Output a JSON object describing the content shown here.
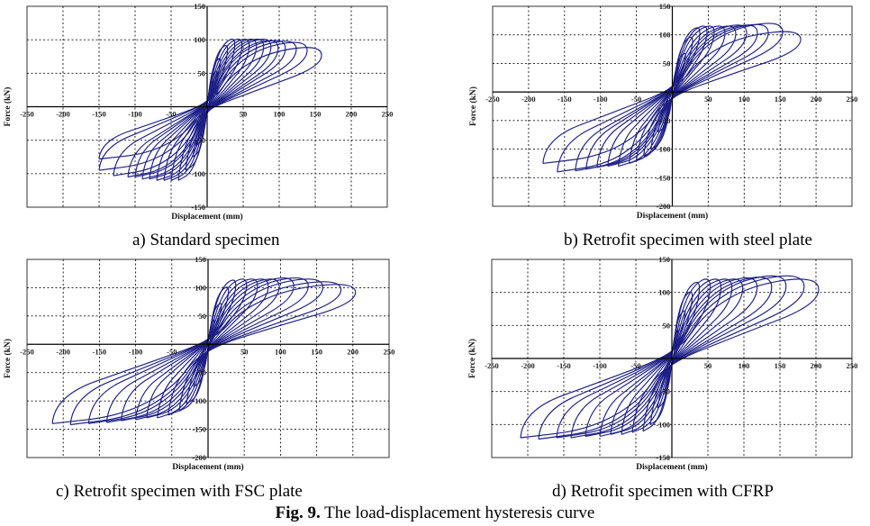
{
  "figure_caption": {
    "label": "Fig. 9.",
    "text": " The load-displacement hysteresis curve"
  },
  "chart_data": [
    {
      "type": "line",
      "caption": "a) Standard specimen",
      "xlabel": "Displacement (mm)",
      "ylabel": "Force (kN)",
      "xlim": [
        -250,
        250
      ],
      "ylim": [
        -150,
        150
      ],
      "xticks": [
        -250,
        -200,
        -150,
        -100,
        -50,
        0,
        50,
        100,
        150,
        200,
        250
      ],
      "yticks": [
        -150,
        -100,
        -50,
        0,
        50,
        100,
        150
      ],
      "grid": true,
      "series_color": "#1d1f86",
      "loops": [
        {
          "dpos": 10,
          "fpos": 40,
          "dneg": -10,
          "fneg": -45
        },
        {
          "dpos": 15,
          "fpos": 55,
          "dneg": -15,
          "fneg": -58
        },
        {
          "dpos": 20,
          "fpos": 75,
          "dneg": -20,
          "fneg": -75
        },
        {
          "dpos": 30,
          "fpos": 95,
          "dneg": -30,
          "fneg": -95
        },
        {
          "dpos": 40,
          "fpos": 105,
          "dneg": -40,
          "fneg": -110
        },
        {
          "dpos": 50,
          "fpos": 105,
          "dneg": -50,
          "fneg": -110
        },
        {
          "dpos": 60,
          "fpos": 105,
          "dneg": -60,
          "fneg": -110
        },
        {
          "dpos": 70,
          "fpos": 105,
          "dneg": -70,
          "fneg": -110
        },
        {
          "dpos": 80,
          "fpos": 105,
          "dneg": -80,
          "fneg": -108
        },
        {
          "dpos": 90,
          "fpos": 105,
          "dneg": -90,
          "fneg": -108
        },
        {
          "dpos": 100,
          "fpos": 103,
          "dneg": -100,
          "fneg": -105
        },
        {
          "dpos": 110,
          "fpos": 103,
          "dneg": -110,
          "fneg": -105
        },
        {
          "dpos": 125,
          "fpos": 102,
          "dneg": -130,
          "fneg": -103
        },
        {
          "dpos": 140,
          "fpos": 100,
          "dneg": -150,
          "fneg": -95
        },
        {
          "dpos": 160,
          "fpos": 92,
          "dneg": -150,
          "fneg": -78
        }
      ]
    },
    {
      "type": "line",
      "caption": "b) Retrofit specimen with steel plate",
      "xlabel": "Displacement (mm)",
      "ylabel": "Force (kN)",
      "xlim": [
        -250,
        250
      ],
      "ylim": [
        -200,
        150
      ],
      "xticks": [
        -250,
        -200,
        -150,
        -100,
        -50,
        0,
        50,
        100,
        150,
        200,
        250
      ],
      "yticks": [
        -200,
        -150,
        -100,
        -50,
        0,
        50,
        100,
        150
      ],
      "grid": true,
      "series_color": "#1d1f86",
      "loops": [
        {
          "dpos": 10,
          "fpos": 45,
          "dneg": -10,
          "fneg": -50
        },
        {
          "dpos": 20,
          "fpos": 70,
          "dneg": -20,
          "fneg": -70
        },
        {
          "dpos": 30,
          "fpos": 100,
          "dneg": -30,
          "fneg": -100
        },
        {
          "dpos": 40,
          "fpos": 117,
          "dneg": -40,
          "fneg": -112
        },
        {
          "dpos": 50,
          "fpos": 120,
          "dneg": -50,
          "fneg": -120
        },
        {
          "dpos": 60,
          "fpos": 120,
          "dneg": -60,
          "fneg": -125
        },
        {
          "dpos": 75,
          "fpos": 120,
          "dneg": -75,
          "fneg": -130
        },
        {
          "dpos": 90,
          "fpos": 120,
          "dneg": -90,
          "fneg": -130
        },
        {
          "dpos": 105,
          "fpos": 122,
          "dneg": -105,
          "fneg": -132
        },
        {
          "dpos": 120,
          "fpos": 122,
          "dneg": -120,
          "fneg": -135
        },
        {
          "dpos": 135,
          "fpos": 123,
          "dneg": -135,
          "fneg": -138
        },
        {
          "dpos": 155,
          "fpos": 125,
          "dneg": -160,
          "fneg": -140
        },
        {
          "dpos": 180,
          "fpos": 110,
          "dneg": -180,
          "fneg": -125
        }
      ]
    },
    {
      "type": "line",
      "caption": "c) Retrofit specimen with FSC plate",
      "xlabel": "Displacement (mm)",
      "ylabel": "Force (kN)",
      "xlim": [
        -250,
        250
      ],
      "ylim": [
        -200,
        150
      ],
      "xticks": [
        -250,
        -200,
        -150,
        -100,
        -50,
        0,
        50,
        100,
        150,
        200,
        250
      ],
      "yticks": [
        -200,
        -150,
        -100,
        -50,
        0,
        50,
        100,
        150
      ],
      "grid": true,
      "series_color": "#1d1f86",
      "loops": [
        {
          "dpos": 10,
          "fpos": 45,
          "dneg": -10,
          "fneg": -50
        },
        {
          "dpos": 20,
          "fpos": 75,
          "dneg": -20,
          "fneg": -75
        },
        {
          "dpos": 30,
          "fpos": 105,
          "dneg": -30,
          "fneg": -105
        },
        {
          "dpos": 40,
          "fpos": 118,
          "dneg": -40,
          "fneg": -118
        },
        {
          "dpos": 55,
          "fpos": 120,
          "dneg": -55,
          "fneg": -125
        },
        {
          "dpos": 70,
          "fpos": 120,
          "dneg": -70,
          "fneg": -130
        },
        {
          "dpos": 85,
          "fpos": 120,
          "dneg": -85,
          "fneg": -130
        },
        {
          "dpos": 100,
          "fpos": 120,
          "dneg": -100,
          "fneg": -133
        },
        {
          "dpos": 120,
          "fpos": 122,
          "dneg": -120,
          "fneg": -135
        },
        {
          "dpos": 140,
          "fpos": 122,
          "dneg": -140,
          "fneg": -138
        },
        {
          "dpos": 160,
          "fpos": 120,
          "dneg": -165,
          "fneg": -140
        },
        {
          "dpos": 185,
          "fpos": 115,
          "dneg": -190,
          "fneg": -142
        },
        {
          "dpos": 205,
          "fpos": 110,
          "dneg": -215,
          "fneg": -140
        }
      ]
    },
    {
      "type": "line",
      "caption": "d) Retrofit specimen with CFRP",
      "xlabel": "Displacement (mm)",
      "ylabel": "Force (kN)",
      "xlim": [
        -250,
        250
      ],
      "ylim": [
        -150,
        150
      ],
      "xticks": [
        -250,
        -200,
        -150,
        -100,
        -50,
        0,
        50,
        100,
        150,
        200,
        250
      ],
      "yticks": [
        -150,
        -100,
        -50,
        0,
        50,
        100,
        150
      ],
      "grid": true,
      "series_color": "#1d1f86",
      "loops": [
        {
          "dpos": 10,
          "fpos": 45,
          "dneg": -10,
          "fneg": -50
        },
        {
          "dpos": 20,
          "fpos": 75,
          "dneg": -20,
          "fneg": -75
        },
        {
          "dpos": 30,
          "fpos": 105,
          "dneg": -30,
          "fneg": -100
        },
        {
          "dpos": 40,
          "fpos": 120,
          "dneg": -40,
          "fneg": -110
        },
        {
          "dpos": 55,
          "fpos": 125,
          "dneg": -55,
          "fneg": -112
        },
        {
          "dpos": 70,
          "fpos": 125,
          "dneg": -70,
          "fneg": -115
        },
        {
          "dpos": 85,
          "fpos": 125,
          "dneg": -85,
          "fneg": -115
        },
        {
          "dpos": 100,
          "fpos": 125,
          "dneg": -100,
          "fneg": -118
        },
        {
          "dpos": 120,
          "fpos": 127,
          "dneg": -120,
          "fneg": -118
        },
        {
          "dpos": 140,
          "fpos": 128,
          "dneg": -140,
          "fneg": -120
        },
        {
          "dpos": 160,
          "fpos": 130,
          "dneg": -160,
          "fneg": -120
        },
        {
          "dpos": 185,
          "fpos": 130,
          "dneg": -185,
          "fneg": -122
        },
        {
          "dpos": 205,
          "fpos": 125,
          "dneg": -210,
          "fneg": -120
        }
      ]
    }
  ]
}
